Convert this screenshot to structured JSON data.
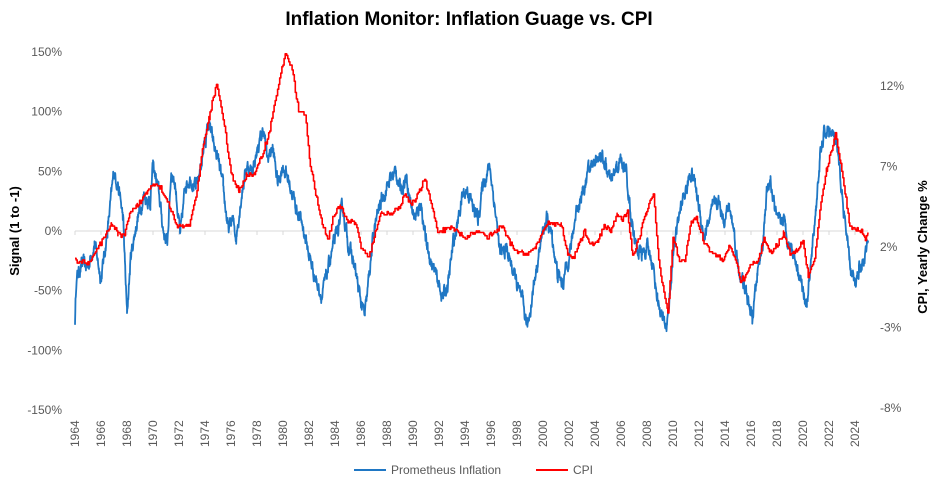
{
  "chart_data": {
    "type": "line",
    "title": "Inflation Monitor: Inflation Guage vs. CPI",
    "xlabel": "",
    "ylabel_left": "Signal  (1 to -1)",
    "ylabel_right": "CPI, Yearly Change %",
    "xlim": [
      1964,
      2025
    ],
    "ylim_left": [
      -150,
      150
    ],
    "ylim_right": [
      -8,
      14.2
    ],
    "left_ticks": [
      "150%",
      "100%",
      "50%",
      "0%",
      "-50%",
      "-100%",
      "-150%"
    ],
    "left_tick_values": [
      150,
      100,
      50,
      0,
      -50,
      -100,
      -150
    ],
    "right_ticks": [
      "12%",
      "7%",
      "2%",
      "-3%",
      "-8%"
    ],
    "right_tick_values": [
      12,
      7,
      2,
      -3,
      -8
    ],
    "x_ticks": [
      "1964",
      "1966",
      "1968",
      "1970",
      "1972",
      "1974",
      "1976",
      "1978",
      "1980",
      "1982",
      "1984",
      "1986",
      "1988",
      "1990",
      "1992",
      "1994",
      "1996",
      "1998",
      "2000",
      "2002",
      "2004",
      "2006",
      "2008",
      "2010",
      "2012",
      "2014",
      "2016",
      "2018",
      "2020",
      "2022",
      "2024"
    ],
    "grid": "zero-line only",
    "legend_position": "bottom",
    "series": [
      {
        "name": "Prometheus Inflation",
        "axis": "left",
        "color": "#1f77c4",
        "points": [
          [
            1964.0,
            -75
          ],
          [
            1964.1,
            -40
          ],
          [
            1964.5,
            -28
          ],
          [
            1965,
            -30
          ],
          [
            1965.5,
            -10
          ],
          [
            1966,
            -40
          ],
          [
            1966.5,
            0
          ],
          [
            1967,
            50
          ],
          [
            1967.3,
            40
          ],
          [
            1967.7,
            10
          ],
          [
            1968,
            -70
          ],
          [
            1968.3,
            -20
          ],
          [
            1968.8,
            10
          ],
          [
            1969.3,
            30
          ],
          [
            1969.8,
            25
          ],
          [
            1970,
            55
          ],
          [
            1970.4,
            35
          ],
          [
            1970.8,
            0
          ],
          [
            1971.1,
            -10
          ],
          [
            1971.4,
            50
          ],
          [
            1971.7,
            40
          ],
          [
            1972.1,
            -5
          ],
          [
            1972.5,
            40
          ],
          [
            1972.9,
            45
          ],
          [
            1973.3,
            35
          ],
          [
            1973.6,
            50
          ],
          [
            1974,
            75
          ],
          [
            1974.3,
            90
          ],
          [
            1974.7,
            70
          ],
          [
            1975,
            60
          ],
          [
            1975.4,
            35
          ],
          [
            1975.8,
            0
          ],
          [
            1976.1,
            10
          ],
          [
            1976.4,
            -5
          ],
          [
            1976.8,
            30
          ],
          [
            1977.2,
            55
          ],
          [
            1977.6,
            50
          ],
          [
            1978.1,
            70
          ],
          [
            1978.5,
            85
          ],
          [
            1978.8,
            60
          ],
          [
            1979.2,
            70
          ],
          [
            1979.6,
            40
          ],
          [
            1980,
            55
          ],
          [
            1980.5,
            40
          ],
          [
            1981,
            20
          ],
          [
            1981.5,
            5
          ],
          [
            1982,
            -20
          ],
          [
            1982.5,
            -40
          ],
          [
            1983,
            -55
          ],
          [
            1983.3,
            -40
          ],
          [
            1983.7,
            -20
          ],
          [
            1984.2,
            0
          ],
          [
            1984.6,
            20
          ],
          [
            1985,
            -10
          ],
          [
            1985.5,
            -30
          ],
          [
            1986,
            -60
          ],
          [
            1986.3,
            -72
          ],
          [
            1986.7,
            -30
          ],
          [
            1987,
            0
          ],
          [
            1987.4,
            20
          ],
          [
            1987.9,
            35
          ],
          [
            1988.3,
            45
          ],
          [
            1988.7,
            50
          ],
          [
            1989,
            35
          ],
          [
            1989.5,
            45
          ],
          [
            1989.9,
            20
          ],
          [
            1990.2,
            10
          ],
          [
            1990.6,
            25
          ],
          [
            1991,
            -10
          ],
          [
            1991.5,
            -30
          ],
          [
            1992,
            -45
          ],
          [
            1992.3,
            -55
          ],
          [
            1992.7,
            -45
          ],
          [
            1993.1,
            -10
          ],
          [
            1993.4,
            5
          ],
          [
            1993.8,
            30
          ],
          [
            1994.2,
            35
          ],
          [
            1994.6,
            20
          ],
          [
            1995,
            10
          ],
          [
            1995.4,
            40
          ],
          [
            1995.9,
            55
          ],
          [
            1996.3,
            20
          ],
          [
            1996.7,
            -20
          ],
          [
            1997.2,
            -15
          ],
          [
            1997.6,
            -30
          ],
          [
            1998,
            -45
          ],
          [
            1998.4,
            -60
          ],
          [
            1998.8,
            -80
          ],
          [
            1999.1,
            -60
          ],
          [
            1999.5,
            -30
          ],
          [
            2000,
            0
          ],
          [
            2000.3,
            10
          ],
          [
            2000.7,
            -5
          ],
          [
            2001.1,
            -35
          ],
          [
            2001.5,
            -45
          ],
          [
            2001.8,
            -30
          ],
          [
            2002.2,
            -10
          ],
          [
            2002.6,
            20
          ],
          [
            2003,
            30
          ],
          [
            2003.5,
            50
          ],
          [
            2004,
            60
          ],
          [
            2004.4,
            65
          ],
          [
            2004.8,
            55
          ],
          [
            2005.2,
            40
          ],
          [
            2005.6,
            50
          ],
          [
            2006,
            60
          ],
          [
            2006.4,
            50
          ],
          [
            2006.8,
            10
          ],
          [
            2007.2,
            -15
          ],
          [
            2007.6,
            -20
          ],
          [
            2008,
            -15
          ],
          [
            2008.4,
            -25
          ],
          [
            2008.8,
            -55
          ],
          [
            2009.2,
            -75
          ],
          [
            2009.5,
            -80
          ],
          [
            2009.8,
            -50
          ],
          [
            2010.1,
            -10
          ],
          [
            2010.6,
            20
          ],
          [
            2011,
            35
          ],
          [
            2011.4,
            50
          ],
          [
            2011.7,
            40
          ],
          [
            2012,
            20
          ],
          [
            2012.4,
            -5
          ],
          [
            2012.8,
            10
          ],
          [
            2013.1,
            20
          ],
          [
            2013.5,
            25
          ],
          [
            2013.9,
            10
          ],
          [
            2014.3,
            20
          ],
          [
            2014.7,
            0
          ],
          [
            2015,
            -30
          ],
          [
            2015.4,
            -45
          ],
          [
            2015.8,
            -60
          ],
          [
            2016.1,
            -75
          ],
          [
            2016.5,
            -35
          ],
          [
            2016.9,
            -10
          ],
          [
            2017.2,
            30
          ],
          [
            2017.5,
            40
          ],
          [
            2017.8,
            20
          ],
          [
            2018.1,
            5
          ],
          [
            2018.5,
            10
          ],
          [
            2018.9,
            -10
          ],
          [
            2019.2,
            -15
          ],
          [
            2019.6,
            -30
          ],
          [
            2020,
            -50
          ],
          [
            2020.3,
            -60
          ],
          [
            2020.6,
            -30
          ],
          [
            2021,
            20
          ],
          [
            2021.3,
            60
          ],
          [
            2021.6,
            80
          ],
          [
            2022,
            85
          ],
          [
            2022.3,
            80
          ],
          [
            2022.6,
            70
          ],
          [
            2023,
            30
          ],
          [
            2023.4,
            -10
          ],
          [
            2023.7,
            -35
          ],
          [
            2024,
            -45
          ],
          [
            2024.3,
            -30
          ],
          [
            2024.7,
            -25
          ],
          [
            2025,
            -8
          ]
        ]
      },
      {
        "name": "CPI",
        "axis": "right",
        "color": "#ff0000",
        "points": [
          [
            1964,
            1.2
          ],
          [
            1965,
            1.0
          ],
          [
            1965.5,
            1.6
          ],
          [
            1966.2,
            2.5
          ],
          [
            1966.8,
            3.5
          ],
          [
            1967.3,
            2.8
          ],
          [
            1967.8,
            2.7
          ],
          [
            1968.2,
            4.0
          ],
          [
            1968.8,
            4.6
          ],
          [
            1969.5,
            5.4
          ],
          [
            1970,
            6.0
          ],
          [
            1970.6,
            5.7
          ],
          [
            1971.3,
            4.5
          ],
          [
            1971.8,
            3.3
          ],
          [
            1972.3,
            3.3
          ],
          [
            1972.8,
            3.4
          ],
          [
            1973.3,
            5.0
          ],
          [
            1973.8,
            8.0
          ],
          [
            1974.3,
            10.0
          ],
          [
            1974.9,
            12.2
          ],
          [
            1975.5,
            9.5
          ],
          [
            1976,
            6.5
          ],
          [
            1976.6,
            5.5
          ],
          [
            1977.2,
            6.5
          ],
          [
            1977.8,
            6.5
          ],
          [
            1978.3,
            7.5
          ],
          [
            1978.9,
            9.0
          ],
          [
            1979.5,
            11.5
          ],
          [
            1980.2,
            14.1
          ],
          [
            1980.7,
            13.0
          ],
          [
            1981.2,
            10.5
          ],
          [
            1981.7,
            10.2
          ],
          [
            1982.1,
            7.0
          ],
          [
            1982.6,
            5.0
          ],
          [
            1983.1,
            3.2
          ],
          [
            1983.5,
            2.5
          ],
          [
            1983.9,
            4.0
          ],
          [
            1984.4,
            4.5
          ],
          [
            1985,
            3.6
          ],
          [
            1985.6,
            3.5
          ],
          [
            1986,
            2.0
          ],
          [
            1986.6,
            1.3
          ],
          [
            1987.1,
            3.0
          ],
          [
            1987.6,
            4.2
          ],
          [
            1988.2,
            4.0
          ],
          [
            1988.8,
            4.3
          ],
          [
            1989.4,
            5.2
          ],
          [
            1989.9,
            4.6
          ],
          [
            1990.5,
            5.5
          ],
          [
            1990.9,
            6.3
          ],
          [
            1991.4,
            4.7
          ],
          [
            1991.9,
            3.0
          ],
          [
            1992.5,
            3.1
          ],
          [
            1993,
            3.2
          ],
          [
            1993.6,
            2.8
          ],
          [
            1994.1,
            2.5
          ],
          [
            1994.7,
            2.9
          ],
          [
            1995.2,
            3.0
          ],
          [
            1995.7,
            2.6
          ],
          [
            1996.3,
            2.9
          ],
          [
            1996.8,
            3.3
          ],
          [
            1997.3,
            2.5
          ],
          [
            1997.8,
            1.8
          ],
          [
            1998.4,
            1.6
          ],
          [
            1998.9,
            1.6
          ],
          [
            1999.4,
            2.0
          ],
          [
            1999.9,
            2.7
          ],
          [
            2000.4,
            3.6
          ],
          [
            2000.9,
            3.4
          ],
          [
            2001.4,
            3.4
          ],
          [
            2001.9,
            1.6
          ],
          [
            2002.3,
            1.3
          ],
          [
            2002.8,
            2.2
          ],
          [
            2003.2,
            3.0
          ],
          [
            2003.6,
            2.1
          ],
          [
            2004.2,
            2.3
          ],
          [
            2004.7,
            3.3
          ],
          [
            2005.2,
            3.0
          ],
          [
            2005.7,
            4.0
          ],
          [
            2006.1,
            3.6
          ],
          [
            2006.5,
            4.2
          ],
          [
            2006.9,
            1.5
          ],
          [
            2007.4,
            2.6
          ],
          [
            2007.9,
            4.1
          ],
          [
            2008.5,
            5.4
          ],
          [
            2008.9,
            1.1
          ],
          [
            2009.3,
            -0.8
          ],
          [
            2009.6,
            -2.0
          ],
          [
            2010,
            2.7
          ],
          [
            2010.5,
            1.1
          ],
          [
            2010.9,
            1.2
          ],
          [
            2011.4,
            3.6
          ],
          [
            2011.8,
            3.8
          ],
          [
            2012.3,
            2.5
          ],
          [
            2012.8,
            1.8
          ],
          [
            2013.3,
            1.5
          ],
          [
            2013.8,
            1.2
          ],
          [
            2014.3,
            2.0
          ],
          [
            2014.8,
            1.3
          ],
          [
            2015.2,
            -0.1
          ],
          [
            2015.6,
            0.2
          ],
          [
            2016,
            1.0
          ],
          [
            2016.5,
            1.0
          ],
          [
            2017,
            2.5
          ],
          [
            2017.5,
            1.7
          ],
          [
            2018,
            2.1
          ],
          [
            2018.5,
            2.9
          ],
          [
            2019,
            1.6
          ],
          [
            2019.5,
            1.8
          ],
          [
            2020,
            2.4
          ],
          [
            2020.4,
            0.2
          ],
          [
            2020.9,
            1.3
          ],
          [
            2021.3,
            4.2
          ],
          [
            2021.8,
            6.8
          ],
          [
            2022.5,
            9.0
          ],
          [
            2022.9,
            7.1
          ],
          [
            2023.3,
            5.0
          ],
          [
            2023.6,
            3.2
          ],
          [
            2024,
            3.1
          ],
          [
            2024.5,
            3.0
          ],
          [
            2024.8,
            2.4
          ],
          [
            2025,
            2.9
          ]
        ]
      }
    ]
  }
}
